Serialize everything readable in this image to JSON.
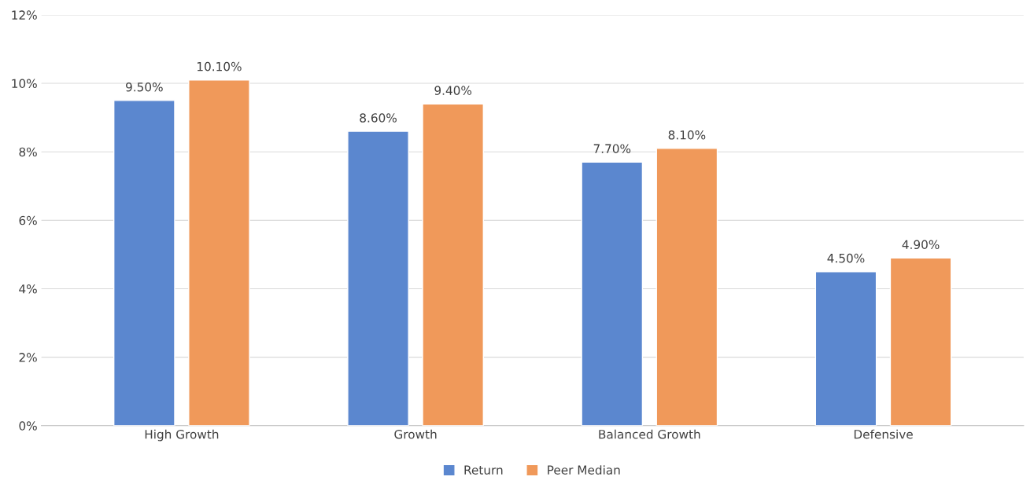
{
  "chart_data": {
    "type": "bar",
    "categories": [
      "High Growth",
      "Growth",
      "Balanced Growth",
      "Defensive"
    ],
    "series": [
      {
        "name": "Return",
        "color": "#5b87cf",
        "values": [
          9.5,
          8.6,
          7.7,
          4.5
        ],
        "value_labels": [
          "9.50%",
          "8.60%",
          "7.70%",
          "4.50%"
        ]
      },
      {
        "name": "Peer Median",
        "color": "#f0995a",
        "values": [
          10.1,
          9.4,
          8.1,
          4.9
        ],
        "value_labels": [
          "10.10%",
          "9.40%",
          "8.10%",
          "4.90%"
        ]
      }
    ],
    "ylim": [
      0,
      12
    ],
    "yticks": [
      {
        "value": 0,
        "label": "0%"
      },
      {
        "value": 2,
        "label": "2%"
      },
      {
        "value": 4,
        "label": "4%"
      },
      {
        "value": 6,
        "label": "6%"
      },
      {
        "value": 8,
        "label": "8%"
      },
      {
        "value": 10,
        "label": "10%"
      },
      {
        "value": 12,
        "label": "12%"
      }
    ],
    "grid": "y",
    "legend": "bottom"
  }
}
